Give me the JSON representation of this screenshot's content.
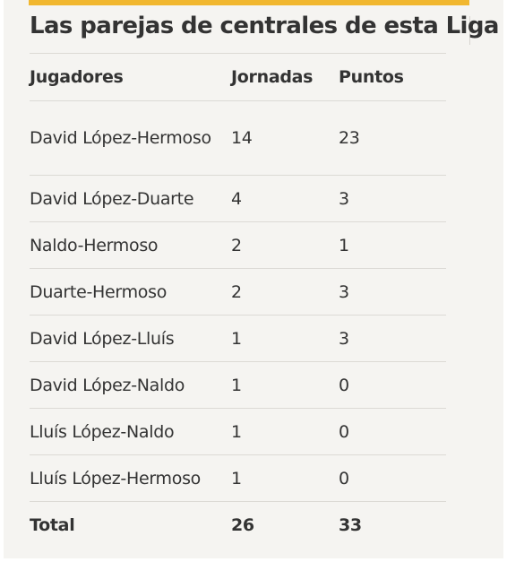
{
  "title": "Las parejas de centrales de esta Liga",
  "accent_color": "#f1b72f",
  "columns": [
    "Jugadores",
    "Jornadas",
    "Puntos"
  ],
  "rows": [
    {
      "jugadores": "David López-Hermoso",
      "jornadas": "14",
      "puntos": "23"
    },
    {
      "jugadores": "David López-Duarte",
      "jornadas": "4",
      "puntos": "3"
    },
    {
      "jugadores": "Naldo-Hermoso",
      "jornadas": "2",
      "puntos": "1"
    },
    {
      "jugadores": "Duarte-Hermoso",
      "jornadas": "2",
      "puntos": "3"
    },
    {
      "jugadores": "David López-Lluís",
      "jornadas": "1",
      "puntos": "3"
    },
    {
      "jugadores": "David López-Naldo",
      "jornadas": "1",
      "puntos": "0"
    },
    {
      "jugadores": "Lluís López-Naldo",
      "jornadas": "1",
      "puntos": "0"
    },
    {
      "jugadores": "Lluís López-Hermoso",
      "jornadas": "1",
      "puntos": "0"
    }
  ],
  "total": {
    "label": "Total",
    "jornadas": "26",
    "puntos": "33"
  }
}
